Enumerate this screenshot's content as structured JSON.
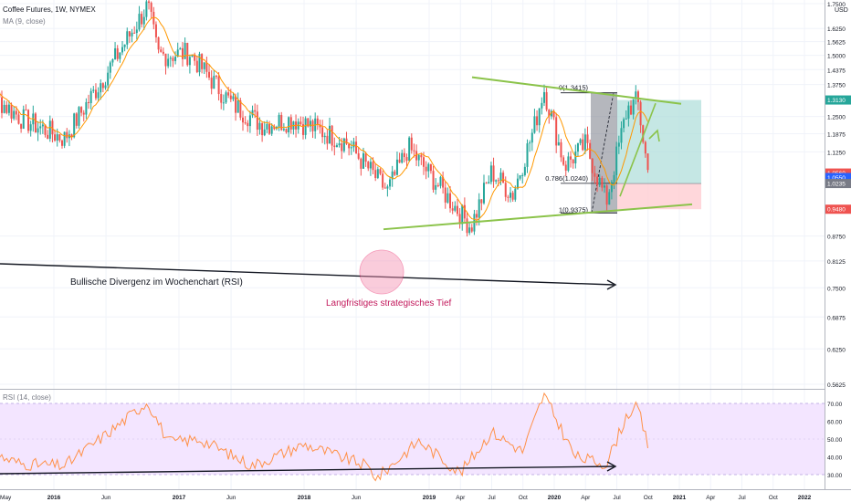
{
  "header": {
    "title": "Coffee Futures, 1W, NYMEX",
    "ma_label": "MA (9, close)",
    "currency": "USD"
  },
  "rsi_panel": {
    "label": "RSI (14, close)"
  },
  "annotations": {
    "divergence": "Bullische Divergenz im Wochenchart (RSI)",
    "low": "Langfristiges strategisches Tief"
  },
  "colors": {
    "up": "#26a69a",
    "down": "#ef5350",
    "ma": "#ff9800",
    "trend_green": "#8bc34a",
    "rsi_line": "#ff9148",
    "rsi_band": "#f3e5ff",
    "target": "#b2dfdb",
    "stop": "#ffcdd2",
    "low_circle": "#f48fb1"
  },
  "chart_data": [
    {
      "type": "candlestick",
      "title": "Coffee Futures, 1W, NYMEX",
      "y_axis": {
        "scale": "log",
        "ticks": [
          "1.7500",
          "1.6250",
          "1.5625",
          "1.5000",
          "1.4375",
          "1.3750",
          "1.3130",
          "1.2500",
          "1.1875",
          "1.1250",
          "1.0560",
          "1.0550",
          "1.0235",
          "0.9480",
          "0.8750",
          "0.8125",
          "0.7500",
          "0.6875",
          "0.6250",
          "0.5625"
        ],
        "price_labels": [
          {
            "label": "1.3130",
            "value": 1.313,
            "color": "#26a69a"
          },
          {
            "label": "1.0560",
            "value": 1.056,
            "color": "#ef5350"
          },
          {
            "label": "1.0550",
            "value": 1.042,
            "color": "#2962ff"
          },
          {
            "label": "1.0235",
            "value": 1.0235,
            "color": "#787b86"
          },
          {
            "label": "0.9480",
            "value": 0.948,
            "color": "#ef5350"
          }
        ]
      },
      "x_axis": {
        "ticks": [
          "May",
          "2016",
          "Jun",
          "2017",
          "Jun",
          "2018",
          "Jun",
          "2019",
          "Apr",
          "Jul",
          "Oct",
          "2020",
          "Apr",
          "Jul",
          "Oct",
          "2021",
          "Apr",
          "Jul",
          "Oct",
          "2022"
        ]
      },
      "series": [
        {
          "name": "Coffee Futures",
          "ohlc_keypoints": [
            {
              "date": "2015-05",
              "close": 1.4
            },
            {
              "date": "2015-10",
              "close": 1.24
            },
            {
              "date": "2016-02",
              "close": 1.17
            },
            {
              "date": "2016-06",
              "close": 1.42
            },
            {
              "date": "2016-10",
              "close": 1.74
            },
            {
              "date": "2016-11",
              "close": 1.5
            },
            {
              "date": "2017-02",
              "close": 1.51
            },
            {
              "date": "2017-06",
              "close": 1.3
            },
            {
              "date": "2017-09",
              "close": 1.22
            },
            {
              "date": "2017-12",
              "close": 1.24
            },
            {
              "date": "2018-05",
              "close": 1.16
            },
            {
              "date": "2018-09",
              "close": 1.0
            },
            {
              "date": "2018-11",
              "close": 1.14
            },
            {
              "date": "2019-05",
              "close": 0.9
            },
            {
              "date": "2019-07",
              "close": 1.06
            },
            {
              "date": "2019-09",
              "close": 0.99
            },
            {
              "date": "2019-11",
              "close": 1.2
            },
            {
              "date": "2019-12",
              "close": 1.36
            },
            {
              "date": "2020-02",
              "close": 1.08
            },
            {
              "date": "2020-04",
              "close": 1.15
            },
            {
              "date": "2020-06",
              "close": 0.97
            },
            {
              "date": "2020-08",
              "close": 1.28
            },
            {
              "date": "2020-09",
              "close": 1.31
            },
            {
              "date": "2020-10",
              "close": 1.056
            }
          ]
        },
        {
          "name": "MA (9, close)"
        }
      ],
      "annotations": {
        "fib_levels": [
          {
            "label": "0(1.3415)",
            "value": 1.3415
          },
          {
            "label": "0.786(1.0240)",
            "value": 1.024
          },
          {
            "label": "1(0.9375)",
            "value": 0.9375
          }
        ],
        "target": 1.313,
        "entry": 1.0235,
        "stop": 0.948
      }
    },
    {
      "type": "line",
      "title": "RSI (14, close)",
      "y_axis": {
        "ticks": [
          "70.00",
          "60.00",
          "50.00",
          "40.00",
          "30.00"
        ],
        "band": [
          30,
          70
        ]
      },
      "series": [
        {
          "name": "RSI (14, close)",
          "keypoints": [
            {
              "date": "2015-05",
              "value": 45
            },
            {
              "date": "2015-10",
              "value": 36
            },
            {
              "date": "2016-02",
              "value": 35
            },
            {
              "date": "2016-07",
              "value": 57
            },
            {
              "date": "2016-10",
              "value": 71
            },
            {
              "date": "2016-12",
              "value": 48
            },
            {
              "date": "2017-03",
              "value": 50
            },
            {
              "date": "2017-08",
              "value": 35
            },
            {
              "date": "2018-01",
              "value": 47
            },
            {
              "date": "2018-07",
              "value": 35
            },
            {
              "date": "2018-08",
              "value": 28
            },
            {
              "date": "2018-12",
              "value": 49
            },
            {
              "date": "2019-04",
              "value": 31
            },
            {
              "date": "2019-07",
              "value": 54
            },
            {
              "date": "2019-10",
              "value": 43
            },
            {
              "date": "2019-12",
              "value": 75
            },
            {
              "date": "2020-03",
              "value": 40
            },
            {
              "date": "2020-06",
              "value": 36
            },
            {
              "date": "2020-08",
              "value": 64
            },
            {
              "date": "2020-09",
              "value": 68
            },
            {
              "date": "2020-10",
              "value": 46
            }
          ]
        }
      ]
    }
  ]
}
